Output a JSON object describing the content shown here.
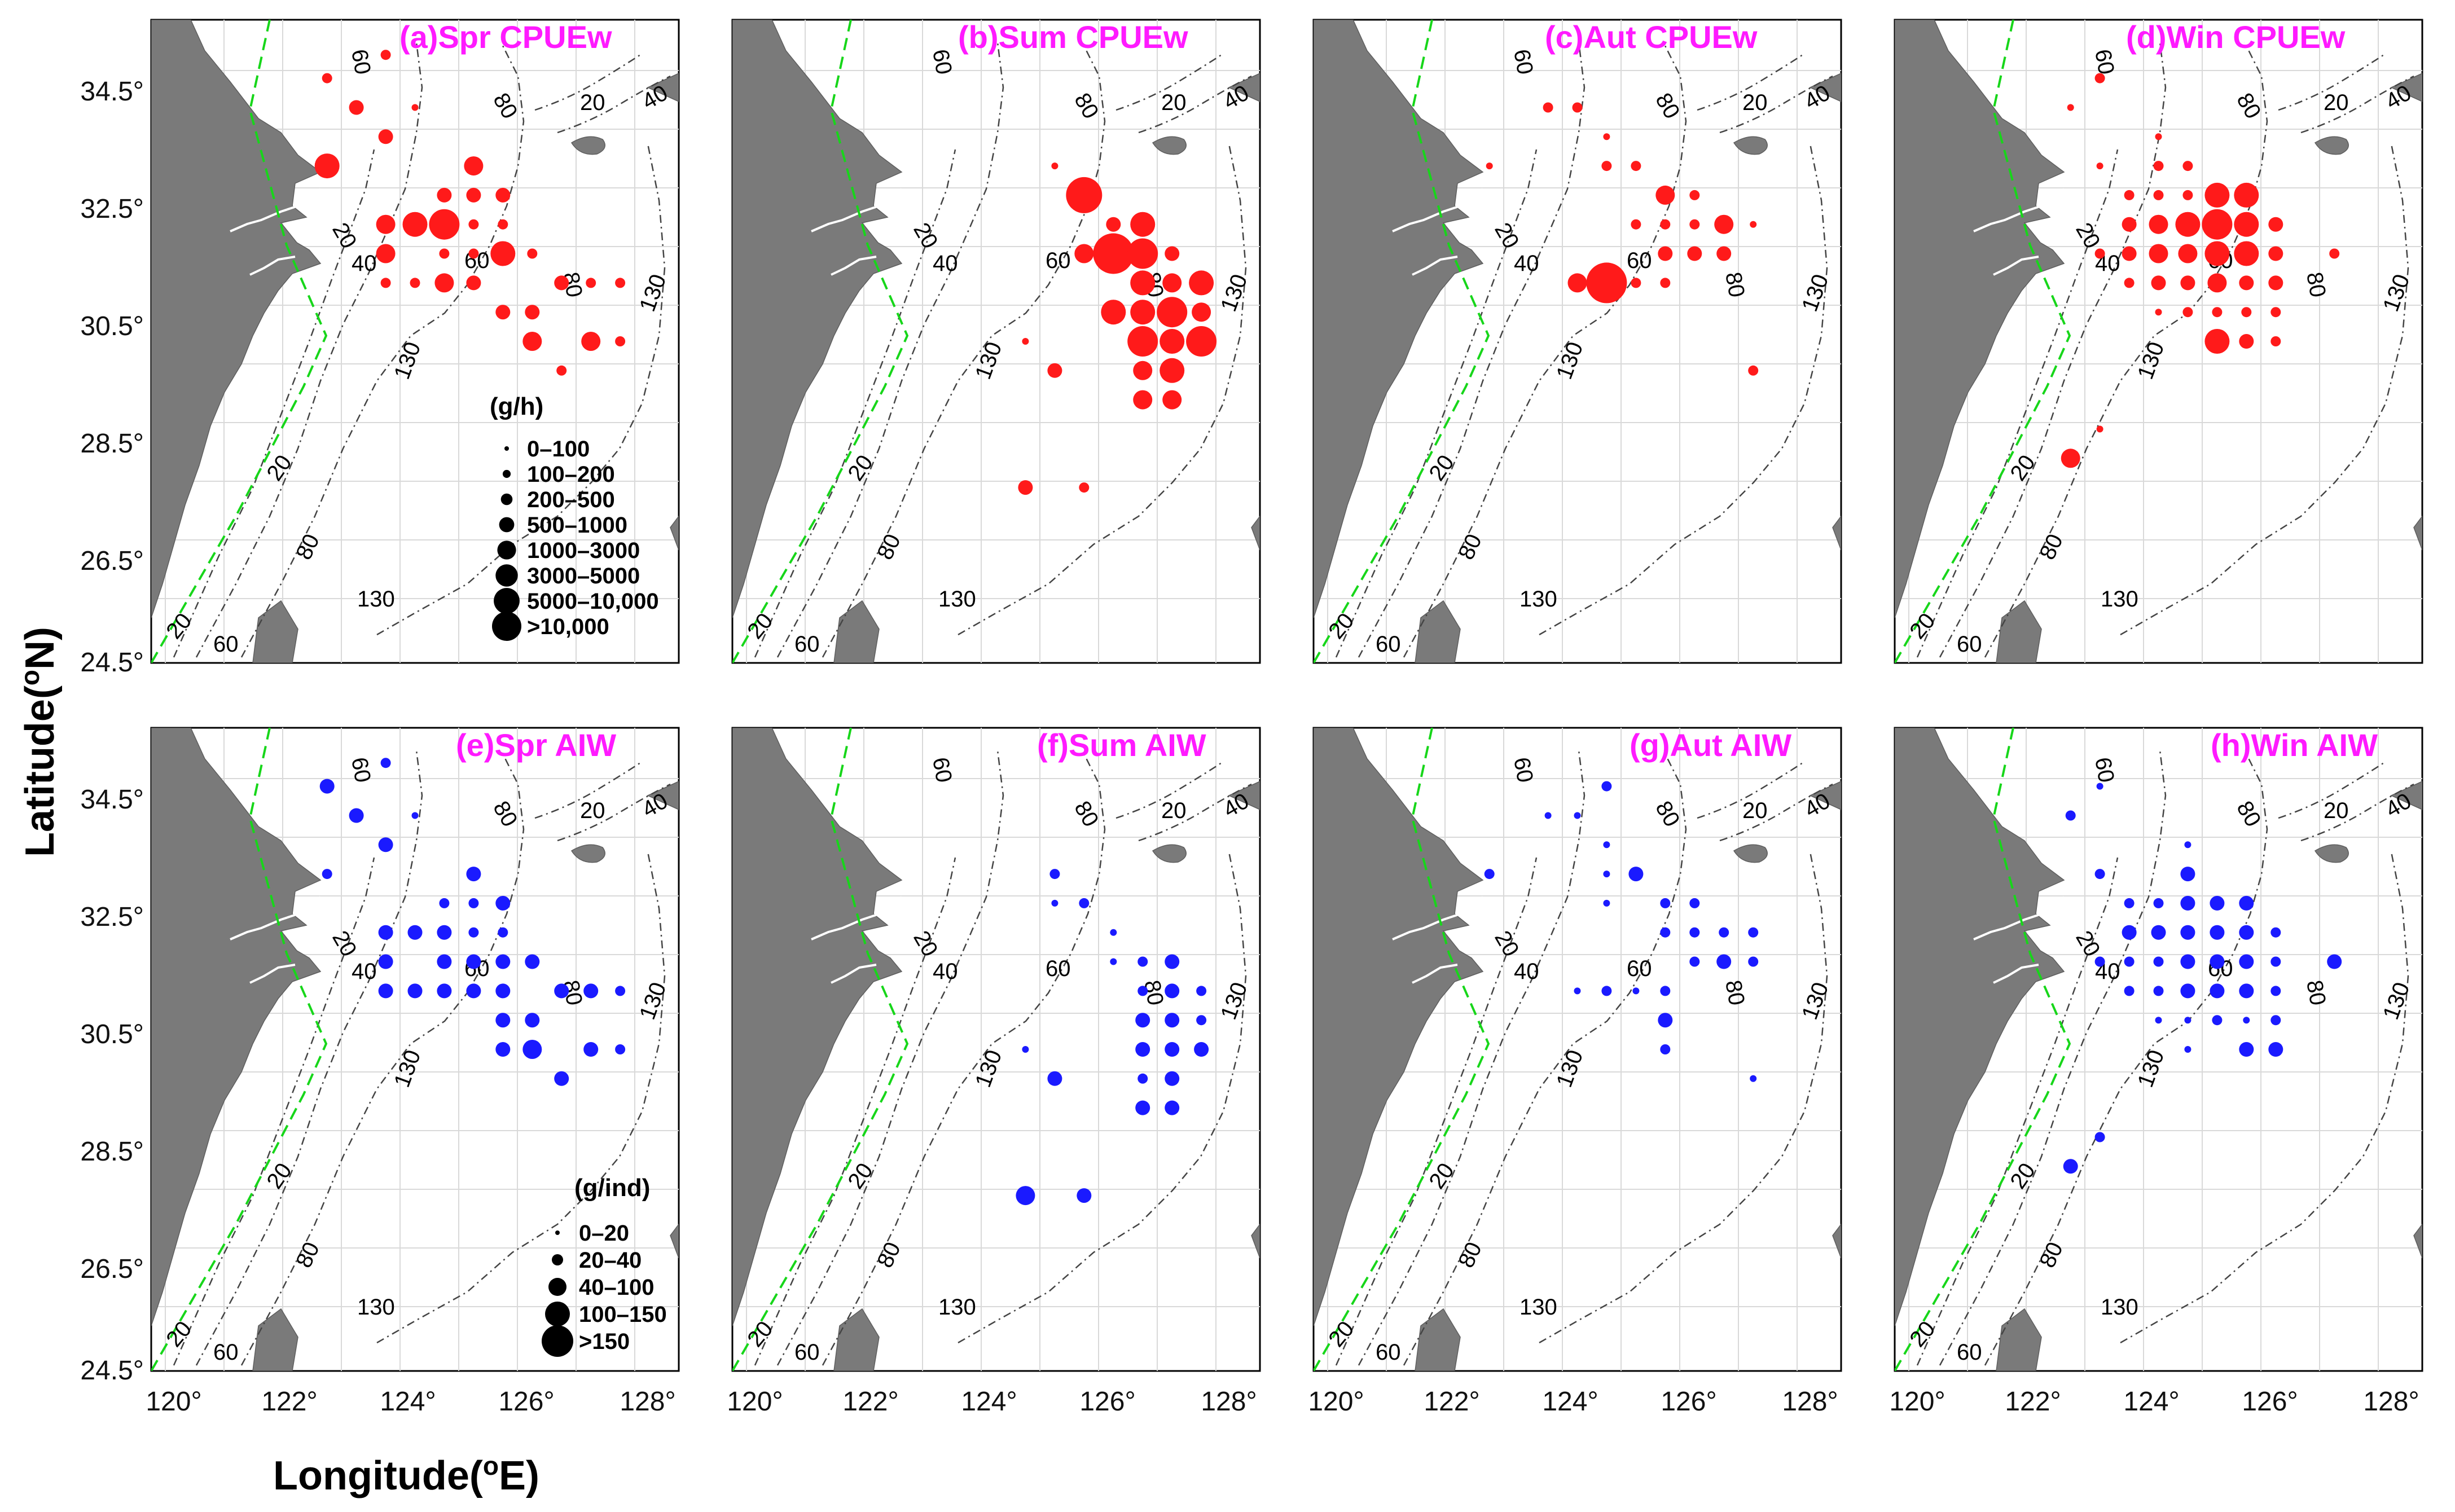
{
  "figure": {
    "xlabel": "Longitude(",
    "xlabel_sup": "o",
    "xlabel_end": "E)",
    "ylabel": "Latitude(",
    "ylabel_sup": "o",
    "ylabel_end": "N)",
    "x_ticks": [
      "120°",
      "122°",
      "124°",
      "126°",
      "128°"
    ],
    "y_ticks": [
      "34.5°",
      "32.5°",
      "30.5°",
      "28.5°",
      "26.5°",
      "24.5°"
    ]
  },
  "colors": {
    "cpue": "#ff1a1a",
    "aiw": "#1a1aff",
    "title": "#ff1aff",
    "land": "#7a7a7a",
    "boundary": "#17d61a"
  },
  "contour_labels": [
    "60",
    "80",
    "20",
    "40",
    "60",
    "20",
    "40",
    "20",
    "80",
    "130",
    "20",
    "60",
    "130",
    "80",
    "130"
  ],
  "legends": {
    "cpue": {
      "title": "(g/h)",
      "classes": [
        "0–100",
        "100–200",
        "200–500",
        "500–1000",
        "1000–3000",
        "3000–5000",
        "5000–10,000",
        ">10,000"
      ]
    },
    "aiw": {
      "title": "(g/ind)",
      "classes": [
        "0–20",
        "20–40",
        "40–100",
        "100–150",
        ">150"
      ]
    }
  },
  "panels": [
    {
      "title": "(a)Spr CPUEw",
      "color": "cpue",
      "legend": "cpue",
      "points": [
        [
          122,
          34.5,
          2
        ],
        [
          122.5,
          34,
          3
        ],
        [
          123,
          34.9,
          2
        ],
        [
          123.5,
          34,
          1
        ],
        [
          122,
          33,
          5
        ],
        [
          123,
          33.5,
          3
        ],
        [
          124.5,
          33,
          4
        ],
        [
          124,
          32.5,
          3
        ],
        [
          124.5,
          32.5,
          3
        ],
        [
          125,
          32.5,
          3
        ],
        [
          123,
          32,
          4
        ],
        [
          123.5,
          32,
          5
        ],
        [
          124,
          32,
          6
        ],
        [
          124.5,
          32,
          2
        ],
        [
          125,
          32,
          2
        ],
        [
          123,
          31.5,
          4
        ],
        [
          124,
          31.5,
          2
        ],
        [
          124.5,
          31.5,
          2
        ],
        [
          125,
          31.5,
          5
        ],
        [
          125.5,
          31.5,
          2
        ],
        [
          123,
          31,
          2
        ],
        [
          123.5,
          31,
          2
        ],
        [
          124,
          31,
          4
        ],
        [
          124.5,
          31,
          3
        ],
        [
          125,
          30.5,
          3
        ],
        [
          125.5,
          30.5,
          3
        ],
        [
          126.5,
          31,
          2
        ],
        [
          127,
          31,
          2
        ],
        [
          126,
          31,
          3
        ],
        [
          125.5,
          30,
          4
        ],
        [
          126.5,
          30,
          4
        ],
        [
          127,
          30,
          2
        ],
        [
          126,
          29.5,
          2
        ]
      ]
    },
    {
      "title": "(b)Sum CPUEw",
      "color": "cpue",
      "legend": null,
      "points": [
        [
          124.5,
          33,
          1
        ],
        [
          125,
          32.5,
          7
        ],
        [
          125.5,
          32,
          3
        ],
        [
          126,
          32,
          5
        ],
        [
          125,
          31.5,
          4
        ],
        [
          125.5,
          31.5,
          8
        ],
        [
          126,
          31.5,
          6
        ],
        [
          126.5,
          31.5,
          3
        ],
        [
          126,
          31,
          5
        ],
        [
          126.5,
          31,
          4
        ],
        [
          127,
          31,
          5
        ],
        [
          125.5,
          30.5,
          5
        ],
        [
          126,
          30.5,
          5
        ],
        [
          126.5,
          30.5,
          6
        ],
        [
          127,
          30.5,
          4
        ],
        [
          126,
          30,
          6
        ],
        [
          126.5,
          30,
          5
        ],
        [
          127,
          30,
          6
        ],
        [
          126,
          29.5,
          4
        ],
        [
          126.5,
          29.5,
          5
        ],
        [
          124,
          30,
          1
        ],
        [
          124.5,
          29.5,
          3
        ],
        [
          126,
          29,
          4
        ],
        [
          126.5,
          29,
          4
        ],
        [
          124,
          27.5,
          3
        ],
        [
          125,
          27.5,
          2
        ]
      ]
    },
    {
      "title": "(c)Aut CPUEw",
      "color": "cpue",
      "legend": null,
      "points": [
        [
          123,
          34,
          2
        ],
        [
          123.5,
          34,
          2
        ],
        [
          124,
          33.5,
          1
        ],
        [
          122,
          33,
          1
        ],
        [
          124,
          33,
          2
        ],
        [
          124.5,
          33,
          2
        ],
        [
          125,
          32.5,
          4
        ],
        [
          125.5,
          32.5,
          2
        ],
        [
          124.5,
          32,
          2
        ],
        [
          125,
          32,
          2
        ],
        [
          125.5,
          32,
          2
        ],
        [
          126,
          32,
          4
        ],
        [
          126.5,
          32,
          1
        ],
        [
          125,
          31.5,
          3
        ],
        [
          125.5,
          31.5,
          3
        ],
        [
          126,
          31.5,
          3
        ],
        [
          123.5,
          31,
          4
        ],
        [
          124,
          31,
          8
        ],
        [
          124.5,
          31,
          2
        ],
        [
          125,
          31,
          2
        ],
        [
          126.5,
          29.5,
          2
        ]
      ]
    },
    {
      "title": "(d)Win CPUEw",
      "color": "cpue",
      "legend": null,
      "points": [
        [
          122.5,
          34.5,
          2
        ],
        [
          122,
          34,
          1
        ],
        [
          122.5,
          33,
          1
        ],
        [
          123.5,
          33.5,
          1
        ],
        [
          123.5,
          33,
          2
        ],
        [
          124,
          33,
          2
        ],
        [
          124.5,
          32.5,
          5
        ],
        [
          125,
          32.5,
          5
        ],
        [
          123,
          32.5,
          2
        ],
        [
          123.5,
          32.5,
          2
        ],
        [
          124,
          32.5,
          2
        ],
        [
          123,
          32,
          3
        ],
        [
          123.5,
          32,
          4
        ],
        [
          124,
          32,
          5
        ],
        [
          124.5,
          32,
          6
        ],
        [
          125,
          32,
          5
        ],
        [
          125.5,
          32,
          3
        ],
        [
          122.5,
          31.5,
          2
        ],
        [
          123,
          31.5,
          3
        ],
        [
          123.5,
          31.5,
          4
        ],
        [
          124,
          31.5,
          4
        ],
        [
          124.5,
          31.5,
          5
        ],
        [
          125,
          31.5,
          5
        ],
        [
          125.5,
          31.5,
          3
        ],
        [
          126.5,
          31.5,
          2
        ],
        [
          123,
          31,
          2
        ],
        [
          123.5,
          31,
          3
        ],
        [
          124,
          31,
          3
        ],
        [
          124.5,
          31,
          4
        ],
        [
          125,
          31,
          3
        ],
        [
          125.5,
          31,
          3
        ],
        [
          123.5,
          30.5,
          1
        ],
        [
          124,
          30.5,
          2
        ],
        [
          124.5,
          30.5,
          2
        ],
        [
          125,
          30.5,
          2
        ],
        [
          125.5,
          30.5,
          2
        ],
        [
          124.5,
          30,
          5
        ],
        [
          124.5,
          30.1,
          1
        ],
        [
          125,
          30,
          3
        ],
        [
          125.5,
          30,
          2
        ],
        [
          122.5,
          28.5,
          1
        ],
        [
          122,
          28,
          4
        ]
      ]
    },
    {
      "title": "(e)Spr AIW",
      "color": "aiw",
      "legend": "aiw",
      "points": [
        [
          122,
          34.5,
          3
        ],
        [
          122.5,
          34,
          3
        ],
        [
          123,
          34.9,
          2
        ],
        [
          123.5,
          34,
          1
        ],
        [
          123,
          33.5,
          3
        ],
        [
          122,
          33,
          2
        ],
        [
          124.5,
          33,
          3
        ],
        [
          124,
          32.5,
          2
        ],
        [
          124.5,
          32.5,
          2
        ],
        [
          125,
          32.5,
          3
        ],
        [
          123,
          32,
          3
        ],
        [
          123.5,
          32,
          3
        ],
        [
          124,
          32,
          3
        ],
        [
          124.5,
          32,
          2
        ],
        [
          125,
          32,
          2
        ],
        [
          123,
          31.5,
          3
        ],
        [
          124,
          31.5,
          3
        ],
        [
          124.5,
          31.5,
          3
        ],
        [
          125,
          31.5,
          3
        ],
        [
          125.5,
          31.5,
          3
        ],
        [
          123,
          31,
          3
        ],
        [
          123.5,
          31,
          3
        ],
        [
          124,
          31,
          3
        ],
        [
          124.5,
          31,
          3
        ],
        [
          125,
          31,
          3
        ],
        [
          126,
          31,
          3
        ],
        [
          126.5,
          31,
          3
        ],
        [
          127,
          31,
          2
        ],
        [
          125,
          30.5,
          3
        ],
        [
          125.5,
          30.5,
          3
        ],
        [
          125,
          30,
          3
        ],
        [
          125.5,
          30,
          4
        ],
        [
          126.5,
          30,
          3
        ],
        [
          127,
          30,
          2
        ],
        [
          126,
          29.5,
          3
        ]
      ]
    },
    {
      "title": "(f)Sum AIW",
      "color": "aiw",
      "legend": null,
      "points": [
        [
          124.5,
          33,
          2
        ],
        [
          125,
          32.5,
          2
        ],
        [
          124.5,
          32.5,
          1
        ],
        [
          125.5,
          32,
          1
        ],
        [
          126,
          31.5,
          2
        ],
        [
          125.5,
          31.5,
          1
        ],
        [
          126.5,
          31.5,
          3
        ],
        [
          126,
          31,
          2
        ],
        [
          126.5,
          31,
          3
        ],
        [
          127,
          31,
          2
        ],
        [
          126,
          30.5,
          3
        ],
        [
          126.5,
          30.5,
          3
        ],
        [
          127,
          30.5,
          2
        ],
        [
          126,
          30,
          3
        ],
        [
          126.5,
          30,
          3
        ],
        [
          127,
          30,
          3
        ],
        [
          126,
          29.5,
          2
        ],
        [
          126.5,
          29.5,
          3
        ],
        [
          124,
          30,
          1
        ],
        [
          124.5,
          29.5,
          3
        ],
        [
          126,
          29,
          3
        ],
        [
          126.5,
          29,
          3
        ],
        [
          124,
          27.5,
          4
        ],
        [
          125,
          27.5,
          3
        ]
      ]
    },
    {
      "title": "(g)Aut AIW",
      "color": "aiw",
      "legend": null,
      "points": [
        [
          123,
          34,
          1
        ],
        [
          123.5,
          34,
          1
        ],
        [
          124,
          34.5,
          2
        ],
        [
          124,
          33.5,
          1
        ],
        [
          122,
          33,
          2
        ],
        [
          124,
          33,
          1
        ],
        [
          124.5,
          33,
          3
        ],
        [
          125,
          32.5,
          2
        ],
        [
          124,
          32.5,
          1
        ],
        [
          125.5,
          32.5,
          2
        ],
        [
          125,
          32,
          2
        ],
        [
          125.5,
          32,
          2
        ],
        [
          126,
          32,
          2
        ],
        [
          126.5,
          32,
          2
        ],
        [
          125.5,
          31.5,
          2
        ],
        [
          126,
          31.5,
          3
        ],
        [
          126.5,
          31.5,
          2
        ],
        [
          123.5,
          31,
          1
        ],
        [
          124,
          31,
          2
        ],
        [
          124.5,
          31,
          1
        ],
        [
          125,
          31,
          2
        ],
        [
          125,
          30.5,
          3
        ],
        [
          125,
          30,
          2
        ],
        [
          126.5,
          29.5,
          1
        ]
      ]
    },
    {
      "title": "(h)Win AIW",
      "color": "aiw",
      "legend": null,
      "points": [
        [
          122.5,
          34.5,
          1
        ],
        [
          122,
          34,
          2
        ],
        [
          122.5,
          33,
          2
        ],
        [
          124,
          33.5,
          1
        ],
        [
          124,
          33,
          3
        ],
        [
          123,
          32.5,
          2
        ],
        [
          123.5,
          32.5,
          2
        ],
        [
          124,
          32.5,
          3
        ],
        [
          124.5,
          32.5,
          3
        ],
        [
          125,
          32.5,
          3
        ],
        [
          123,
          32,
          3
        ],
        [
          123.5,
          32,
          3
        ],
        [
          124,
          32,
          3
        ],
        [
          124.5,
          32,
          3
        ],
        [
          125,
          32,
          3
        ],
        [
          125.5,
          32,
          2
        ],
        [
          122.5,
          31.5,
          2
        ],
        [
          123,
          31.5,
          2
        ],
        [
          123.5,
          31.5,
          2
        ],
        [
          124,
          31.5,
          3
        ],
        [
          124.5,
          31.5,
          3
        ],
        [
          125,
          31.5,
          3
        ],
        [
          125.5,
          31.5,
          2
        ],
        [
          126.5,
          31.5,
          3
        ],
        [
          123,
          31,
          2
        ],
        [
          123.5,
          31,
          2
        ],
        [
          124,
          31,
          3
        ],
        [
          124.5,
          31,
          3
        ],
        [
          125,
          31,
          3
        ],
        [
          125.5,
          31,
          2
        ],
        [
          123.5,
          30.5,
          1
        ],
        [
          124,
          30.5,
          1
        ],
        [
          124.5,
          30.5,
          2
        ],
        [
          125,
          30.5,
          1
        ],
        [
          125.5,
          30.5,
          2
        ],
        [
          124,
          30,
          1
        ],
        [
          125,
          30,
          3
        ],
        [
          125.5,
          30,
          3
        ],
        [
          122.5,
          28.5,
          2
        ],
        [
          122,
          28,
          3
        ]
      ]
    }
  ]
}
